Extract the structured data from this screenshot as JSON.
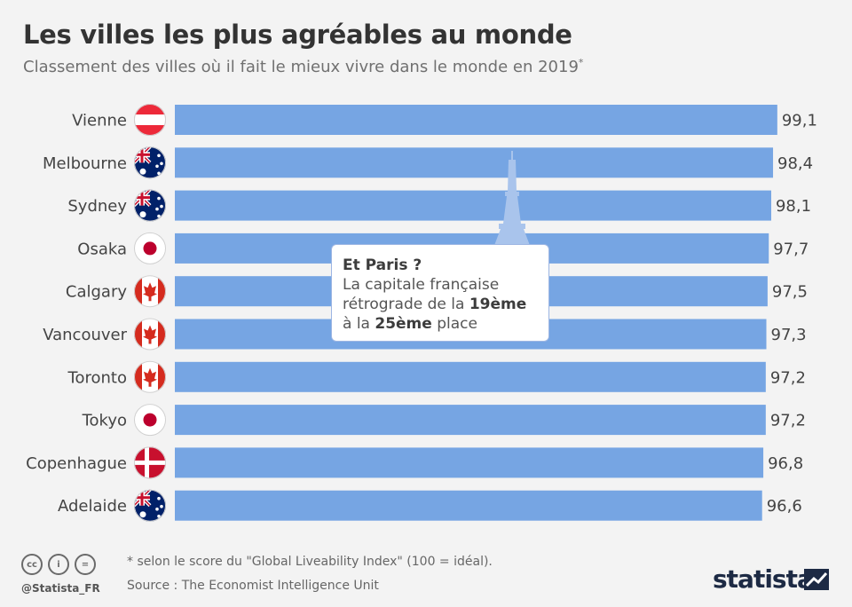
{
  "title": "Les villes les plus agréables au monde",
  "subtitle": "Classement des villes où il fait le mieux vivre dans le monde en 2019",
  "subtitle_mark": "*",
  "chart_data": {
    "type": "bar",
    "orientation": "horizontal",
    "categories": [
      "Vienne",
      "Melbourne",
      "Sydney",
      "Osaka",
      "Calgary",
      "Vancouver",
      "Toronto",
      "Tokyo",
      "Copenhague",
      "Adelaide"
    ],
    "values": [
      99.1,
      98.4,
      98.1,
      97.7,
      97.5,
      97.3,
      97.2,
      97.2,
      96.8,
      96.6
    ],
    "value_labels": [
      "99,1",
      "98,4",
      "98,1",
      "97,7",
      "97,5",
      "97,3",
      "97,2",
      "97,2",
      "96,8",
      "96,6"
    ],
    "flags": [
      "austria",
      "australia",
      "australia",
      "japan",
      "canada",
      "canada",
      "canada",
      "japan",
      "denmark",
      "australia"
    ],
    "bar_color": "#76a5e3",
    "xlim": [
      0,
      100
    ]
  },
  "callout": {
    "heading": "Et Paris ?",
    "line1": "La capitale française",
    "line2_prefix": "rétrograde de la ",
    "line2_bold": "19ème",
    "line3_prefix": "à la ",
    "line3_bold": "25ème",
    "line3_suffix": " place",
    "icon": "eiffel-tower-icon"
  },
  "footer": {
    "note": "* selon le score du \"Global Liveability Index\" (100 = idéal).",
    "source": "Source : The Economist Intelligence Unit",
    "handle": "@Statista_FR",
    "license_icons": [
      "creative-commons-icon",
      "attribution-icon",
      "no-derivatives-icon"
    ],
    "license_glyphs": [
      "cc",
      "i",
      "="
    ],
    "brand": "statista"
  },
  "colors": {
    "title": "#333333",
    "subtitle": "#707070",
    "bar": "#76a5e3",
    "tower": "#a9c4ec"
  }
}
